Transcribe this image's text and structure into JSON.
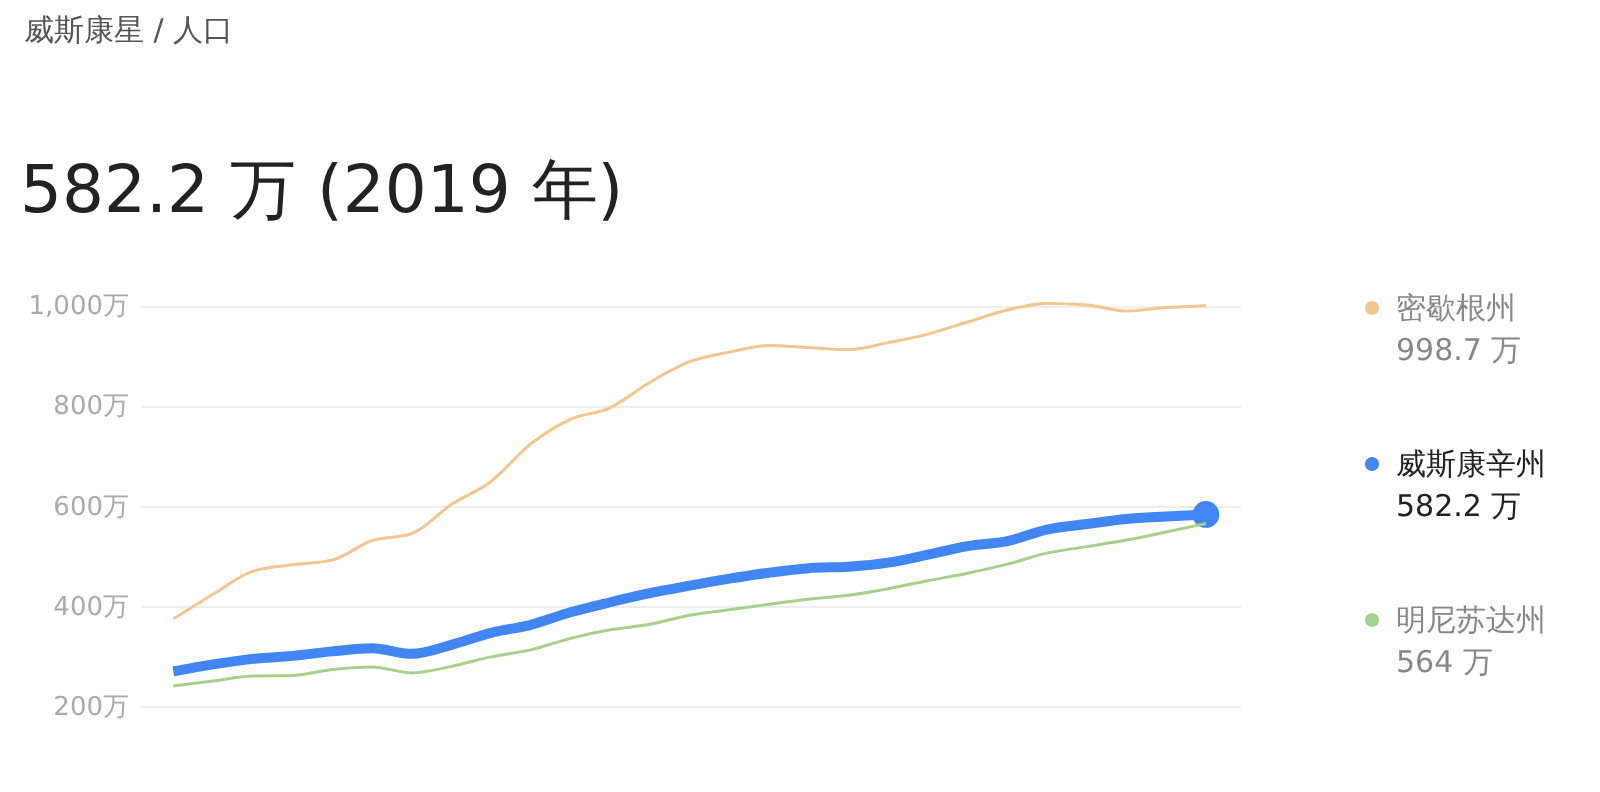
{
  "chart_data": {
    "type": "line",
    "subtitle": "威斯康星 / 人口",
    "title": "582.2 万 (2019 年)",
    "categories": [
      null,
      null,
      null,
      null,
      null,
      null,
      null,
      null,
      null,
      null,
      null,
      null,
      null,
      null,
      null,
      null,
      null,
      null,
      null,
      null,
      null,
      null,
      null,
      null,
      null,
      null,
      null
    ],
    "series": [
      {
        "name": "密歇根州",
        "color": "#f3c58f",
        "values": [
          374,
          423,
          469,
          482,
          491,
          530,
          544,
          602,
          648,
          723,
          772,
          795,
          846,
          887,
          906,
          919,
          915,
          911,
          925,
          942,
          966,
          990,
          1003,
          1000,
          988,
          995,
          998.7
        ]
      },
      {
        "name": "威斯康辛州",
        "color": "#4285f4",
        "values": [
          269,
          283,
          294,
          300,
          309,
          315,
          304,
          322,
          346,
          362,
          387,
          407,
          425,
          440,
          454,
          466,
          475,
          478,
          486,
          502,
          519,
          529,
          552,
          563,
          573,
          578,
          582.2
        ]
      },
      {
        "name": "明尼苏达州",
        "color": "#a8d08d",
        "values": [
          240,
          250,
          260,
          261,
          273,
          278,
          266,
          279,
          298,
          312,
          335,
          352,
          363,
          381,
          392,
          403,
          413,
          421,
          434,
          450,
          465,
          483,
          505,
          518,
          531,
          547,
          564
        ]
      }
    ],
    "annotations": [
      "998.7 万",
      "582.2 万",
      "564 万"
    ],
    "ylim": [
      200,
      1010
    ],
    "yticks": [
      {
        "value": 200,
        "label": "200万"
      },
      {
        "value": 400,
        "label": "400万"
      },
      {
        "value": 600,
        "label": "600万"
      },
      {
        "value": 800,
        "label": "800万"
      },
      {
        "value": 1000,
        "label": "1,000万"
      }
    ],
    "grid": "y",
    "legend": "right",
    "tick_labels": "y",
    "marker": "none",
    "line_style": "solid"
  }
}
